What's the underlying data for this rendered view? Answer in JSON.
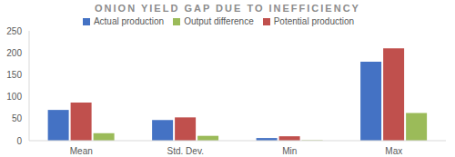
{
  "chart_data": {
    "type": "bar",
    "title": "ONION YIELD GAP DUE TO INEFFICIENCY",
    "categories": [
      "Mean",
      "Std. Dev.",
      "Min",
      "Max"
    ],
    "series": [
      {
        "name": "Actual production",
        "color": "#4472c4",
        "values": [
          70,
          47,
          6,
          180
        ]
      },
      {
        "name": "Potential production",
        "color": "#c0504d",
        "values": [
          87,
          53,
          10,
          210
        ]
      },
      {
        "name": "Output difference",
        "color": "#9bbb59",
        "values": [
          17,
          11,
          1,
          63
        ]
      }
    ],
    "ylim": [
      0,
      250
    ],
    "yticks": [
      0,
      50,
      100,
      150,
      200,
      250
    ],
    "grid": false,
    "legend": "top"
  }
}
